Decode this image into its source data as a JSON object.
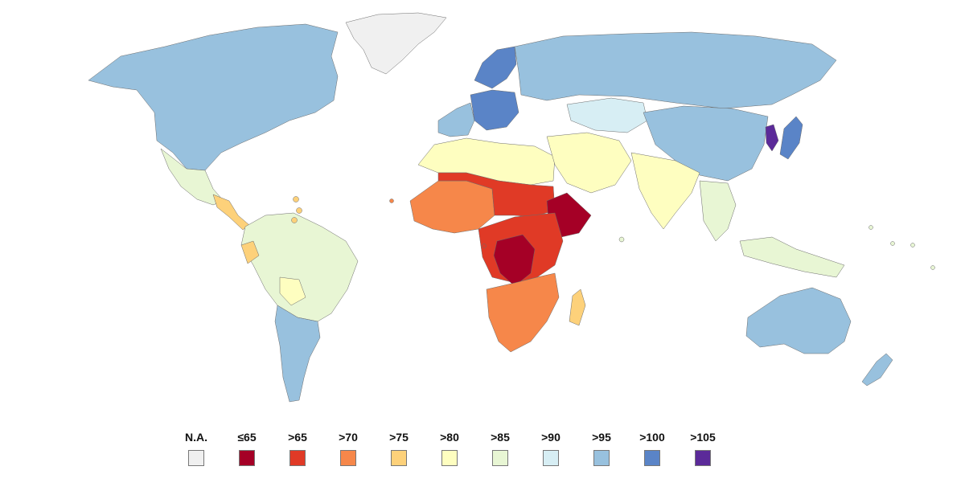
{
  "legend": {
    "items": [
      {
        "label": "N.A.",
        "color": "#f0f0f0"
      },
      {
        "label": "≤65",
        "color": "#a50026"
      },
      {
        "label": ">65",
        "color": "#e03a26"
      },
      {
        "label": ">70",
        "color": "#f6874a"
      },
      {
        "label": ">75",
        "color": "#fdd17a"
      },
      {
        "label": ">80",
        "color": "#fefec0"
      },
      {
        "label": ">85",
        "color": "#e8f6d4"
      },
      {
        "label": ">90",
        "color": "#d7eef4"
      },
      {
        "label": ">95",
        "color": "#98c1de"
      },
      {
        "label": ">100",
        "color": "#5a84c7"
      },
      {
        "label": ">105",
        "color": "#5b2a99"
      }
    ]
  },
  "regions": [
    {
      "name": "greenland",
      "bin": "N.A."
    },
    {
      "name": "north-america",
      "bin": ">95"
    },
    {
      "name": "mexico",
      "bin": ">85"
    },
    {
      "name": "central-america",
      "bin": ">75"
    },
    {
      "name": "south-america",
      "bin": ">85"
    },
    {
      "name": "argentina",
      "bin": ">95"
    },
    {
      "name": "bolivia",
      "bin": ">80"
    },
    {
      "name": "ecuador",
      "bin": ">75"
    },
    {
      "name": "western-europe",
      "bin": ">95"
    },
    {
      "name": "central-europe",
      "bin": ">100"
    },
    {
      "name": "scandinavia",
      "bin": ">100"
    },
    {
      "name": "russia",
      "bin": ">95"
    },
    {
      "name": "kazakhstan",
      "bin": ">90"
    },
    {
      "name": "north-africa",
      "bin": ">80"
    },
    {
      "name": "middle-east",
      "bin": ">80"
    },
    {
      "name": "west-africa",
      "bin": ">70"
    },
    {
      "name": "sahel",
      "bin": ">65"
    },
    {
      "name": "ethiopia",
      "bin": "≤65"
    },
    {
      "name": "congo",
      "bin": "≤65"
    },
    {
      "name": "central-africa",
      "bin": ">65"
    },
    {
      "name": "southern-africa",
      "bin": ">70"
    },
    {
      "name": "madagascar",
      "bin": ">75"
    },
    {
      "name": "south-asia",
      "bin": ">80"
    },
    {
      "name": "china",
      "bin": ">95"
    },
    {
      "name": "southeast-asia",
      "bin": ">85"
    },
    {
      "name": "korea",
      "bin": ">105"
    },
    {
      "name": "japan",
      "bin": ">100"
    },
    {
      "name": "australia",
      "bin": ">95"
    },
    {
      "name": "new-zealand",
      "bin": ">95"
    }
  ]
}
